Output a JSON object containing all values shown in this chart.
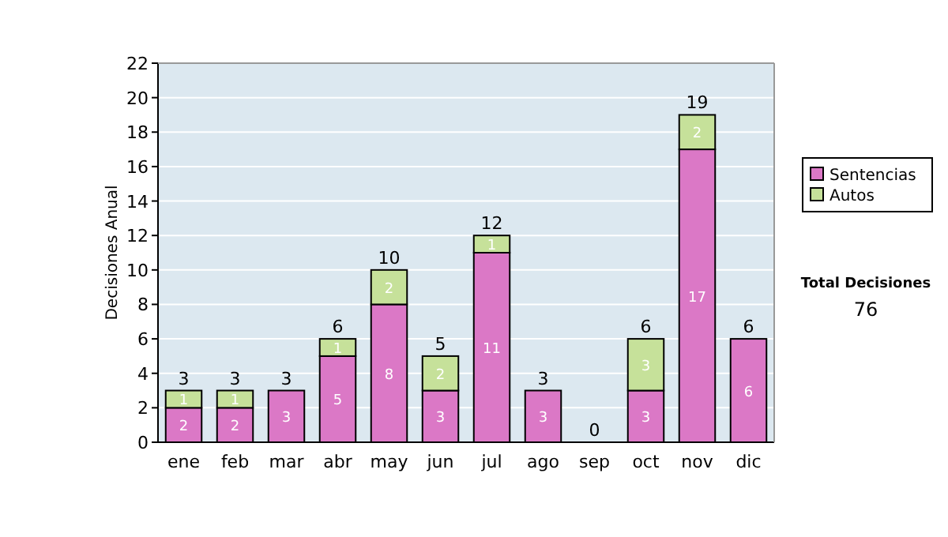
{
  "chart_data": {
    "type": "bar",
    "ylabel": "Decisiones Anual",
    "categories": [
      "ene",
      "feb",
      "mar",
      "abr",
      "may",
      "jun",
      "jul",
      "ago",
      "sep",
      "oct",
      "nov",
      "dic"
    ],
    "series": [
      {
        "name": "Sentencias",
        "color": "#db78c6",
        "values": [
          2,
          2,
          3,
          5,
          8,
          3,
          11,
          3,
          0,
          3,
          17,
          6
        ],
        "value_labels": [
          "2",
          "2",
          "3",
          "5",
          "8",
          "3",
          "11",
          "3",
          null,
          "3",
          "17",
          "6"
        ]
      },
      {
        "name": "Autos",
        "color": "#c6e19a",
        "values": [
          1,
          1,
          0,
          1,
          2,
          2,
          1,
          0,
          0,
          3,
          2,
          0
        ],
        "value_labels": [
          "1",
          "1",
          null,
          "1",
          "2",
          "2",
          "1",
          null,
          null,
          "3",
          "2",
          null
        ]
      }
    ],
    "stacked": true,
    "totals": [
      "3",
      "3",
      "3",
      "6",
      "10",
      "5",
      "12",
      "3",
      "0",
      "6",
      "19",
      "6"
    ],
    "ylim": [
      0,
      22
    ],
    "yticks": [
      0,
      2,
      4,
      6,
      8,
      10,
      12,
      14,
      16,
      18,
      20,
      22
    ],
    "grid": "y",
    "legend": "right",
    "annotations": [
      "Total Decisiones",
      "76"
    ]
  }
}
